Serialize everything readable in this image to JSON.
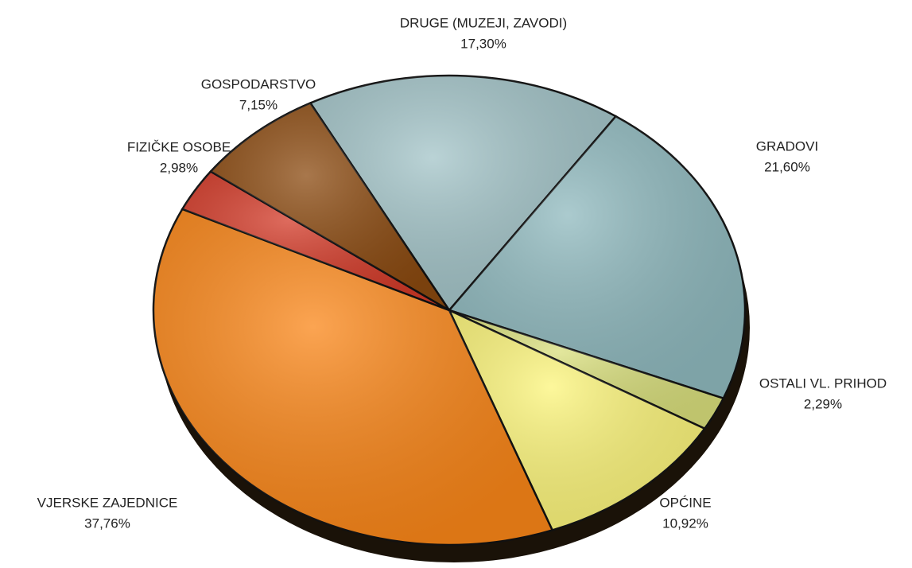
{
  "chart_data": {
    "type": "pie",
    "categories": [
      "DRUGE (MUZEJI, ZAVODI)",
      "GRADOVI",
      "OSTALI VL. PRIHOD",
      "OPĆINE",
      "VJERSKE ZAJEDNICE",
      "FIZIČKE OSOBE",
      "GOSPODARSTVO"
    ],
    "values": [
      17.3,
      21.6,
      2.29,
      10.92,
      37.76,
      2.98,
      7.15
    ],
    "value_labels": [
      "17,30%",
      "21,60%",
      "2,29%",
      "10,92%",
      "37,76%",
      "2,98%",
      "7,15%"
    ],
    "colors": [
      "#a3c4c8",
      "#8fb9be",
      "#d9df7c",
      "#fcf57a",
      "#fa8618",
      "#d33a28",
      "#8b4a10"
    ]
  }
}
